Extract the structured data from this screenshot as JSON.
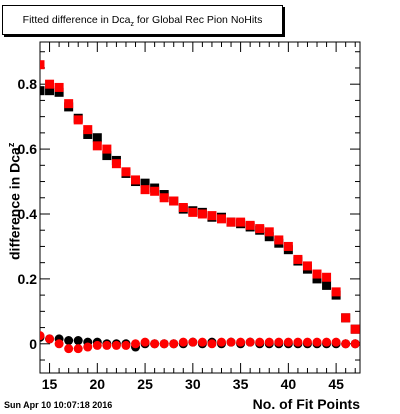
{
  "title": {
    "main": "Fitted difference in Dca",
    "sub": "z",
    "rest": " for Global Rec Pion NoHits"
  },
  "datestamp": "Sun Apr 10 10:07:18 2016",
  "chart_data": {
    "type": "scatter",
    "xlabel": "No. of Fit Points",
    "ylabel_main": "difference in Dca",
    "ylabel_sub": "z",
    "xlim": [
      14,
      47.5
    ],
    "ylim": [
      -0.09,
      0.93
    ],
    "xticks": [
      15,
      20,
      25,
      30,
      35,
      40,
      45
    ],
    "yticks": [
      0,
      0.2,
      0.4,
      0.6,
      0.8
    ],
    "ytick_labels": [
      "0",
      "0.2",
      "0.4",
      "0.6",
      "0.8"
    ],
    "series": [
      {
        "color": "#000000",
        "marker": "square",
        "x": [
          14,
          15,
          16,
          17,
          18,
          19,
          20,
          21,
          22,
          23,
          24,
          25,
          26,
          27,
          28,
          29,
          30,
          31,
          32,
          33,
          34,
          35,
          36,
          37,
          38,
          39,
          40,
          41,
          42,
          43,
          44,
          45,
          46,
          47
        ],
        "y": [
          0.78,
          0.78,
          0.775,
          0.73,
          0.695,
          0.645,
          0.635,
          0.58,
          0.565,
          0.525,
          0.5,
          0.495,
          0.48,
          0.46,
          0.44,
          0.415,
          0.41,
          0.405,
          0.39,
          0.39,
          0.375,
          0.37,
          0.36,
          0.35,
          0.33,
          0.31,
          0.29,
          0.255,
          0.23,
          0.2,
          0.18,
          0.15,
          0.08,
          0.045
        ]
      },
      {
        "color": "#ff0000",
        "marker": "square",
        "x": [
          14,
          15,
          16,
          17,
          18,
          19,
          20,
          21,
          22,
          23,
          24,
          25,
          26,
          27,
          28,
          29,
          30,
          31,
          32,
          33,
          34,
          35,
          36,
          37,
          38,
          39,
          40,
          41,
          42,
          43,
          44,
          45,
          46,
          47
        ],
        "y": [
          0.86,
          0.8,
          0.79,
          0.74,
          0.69,
          0.66,
          0.61,
          0.6,
          0.555,
          0.53,
          0.505,
          0.475,
          0.47,
          0.45,
          0.44,
          0.42,
          0.405,
          0.4,
          0.395,
          0.385,
          0.375,
          0.375,
          0.365,
          0.355,
          0.345,
          0.32,
          0.3,
          0.26,
          0.24,
          0.215,
          0.205,
          0.16,
          0.08,
          0.045
        ]
      },
      {
        "color": "#000000",
        "marker": "circle",
        "x": [
          14,
          15,
          16,
          17,
          18,
          19,
          20,
          21,
          22,
          23,
          24,
          25,
          26,
          27,
          28,
          29,
          30,
          31,
          32,
          33,
          34,
          35,
          36,
          37,
          38,
          39,
          40,
          41,
          42,
          43,
          44,
          45,
          46,
          47
        ],
        "y": [
          0.02,
          0.015,
          0.015,
          0.01,
          0.01,
          0.005,
          0.005,
          0.0,
          0.0,
          0.0,
          -0.01,
          0.0,
          0.0,
          0.0,
          0.0,
          0.0,
          0.005,
          0.0,
          0.005,
          0.0,
          0.005,
          0.0,
          0.005,
          0.0,
          0.0,
          0.0,
          0.0,
          0.0,
          0.0,
          0.0,
          0.0,
          0.0,
          0.0,
          0.0
        ]
      },
      {
        "color": "#ff0000",
        "marker": "circle",
        "x": [
          14,
          15,
          16,
          17,
          18,
          19,
          20,
          21,
          22,
          23,
          24,
          25,
          26,
          27,
          28,
          29,
          30,
          31,
          32,
          33,
          34,
          35,
          36,
          37,
          38,
          39,
          40,
          41,
          42,
          43,
          44,
          45,
          46,
          47
        ],
        "y": [
          0.025,
          0.015,
          0.0,
          -0.015,
          -0.015,
          -0.01,
          -0.005,
          -0.005,
          -0.005,
          -0.005,
          0.0,
          0.005,
          0.0,
          0.0,
          0.0,
          0.005,
          0.005,
          0.005,
          0.0,
          0.005,
          0.005,
          0.005,
          0.005,
          0.005,
          0.005,
          0.005,
          0.005,
          0.005,
          0.005,
          0.005,
          0.005,
          0.005,
          0.0,
          0.0
        ]
      }
    ]
  }
}
